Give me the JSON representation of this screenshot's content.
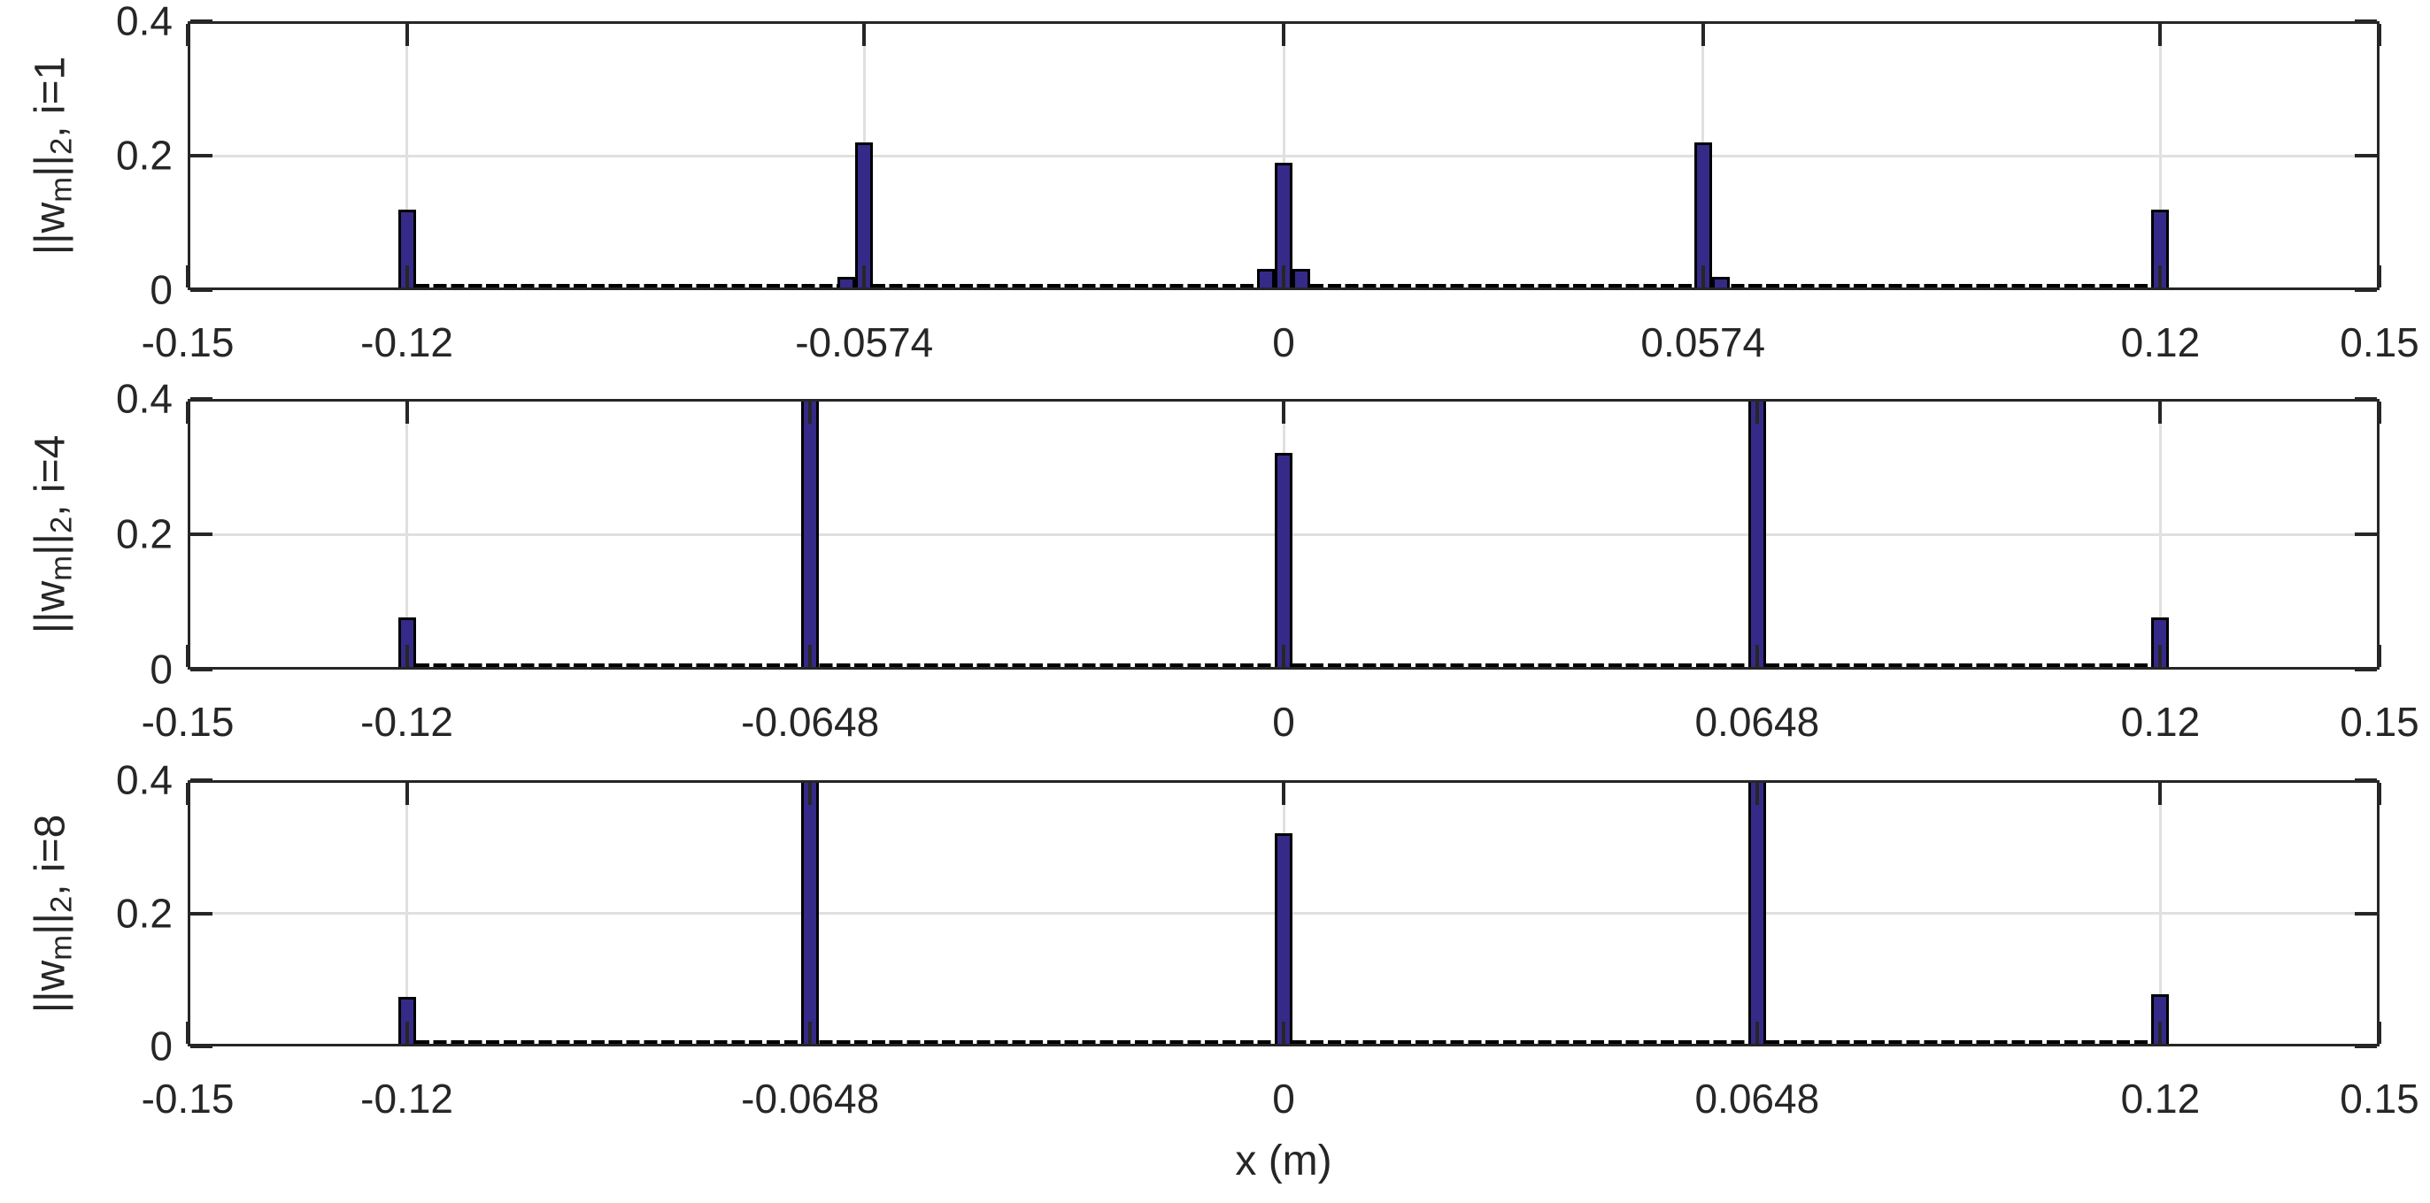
{
  "chart_data": {
    "type": "bar",
    "xlabel": "x (m)",
    "xlim": [
      -0.15,
      0.15
    ],
    "ylim": [
      0,
      0.4
    ],
    "grid": true,
    "ytick_values": [
      0,
      0.2,
      0.4
    ],
    "ytick_labels": [
      "0",
      "0.2",
      "0.4"
    ],
    "colors": {
      "bar_fill": "#352a87",
      "bar_edge": "#000000",
      "grid_line": "#e0e0e0",
      "axis_line": "#262626",
      "text": "#262626",
      "background": "#ffffff"
    },
    "subplots": [
      {
        "ylabel_text": "||w_m||_2, i=1",
        "ylabel_parts": {
          "p1": "||w",
          "s1": "m",
          "p2": "||",
          "s2": "2",
          "p3": ", i=1"
        },
        "xtick_values": [
          -0.15,
          -0.12,
          -0.0574,
          0,
          0.0574,
          0.12,
          0.15
        ],
        "xtick_labels": [
          "-0.15",
          "-0.12",
          "-0.0574",
          "0",
          "0.0574",
          "0.12",
          "0.15"
        ],
        "bars": [
          {
            "x": -0.12,
            "value": 0.12
          },
          {
            "x": -0.0598,
            "value": 0.02
          },
          {
            "x": -0.0574,
            "value": 0.22
          },
          {
            "x": -0.0024,
            "value": 0.032
          },
          {
            "x": 0,
            "value": 0.19
          },
          {
            "x": 0.0024,
            "value": 0.032
          },
          {
            "x": 0.0574,
            "value": 0.22
          },
          {
            "x": 0.0598,
            "value": 0.02
          },
          {
            "x": 0.12,
            "value": 0.12
          }
        ],
        "zero_bar_range": [
          -0.12,
          0.12
        ],
        "zero_bar_spacing": 0.0024
      },
      {
        "ylabel_text": "||w_m||_2, i=4",
        "ylabel_parts": {
          "p1": "||w",
          "s1": "m",
          "p2": "||",
          "s2": "2",
          "p3": ", i=4"
        },
        "xtick_values": [
          -0.15,
          -0.12,
          -0.0648,
          0,
          0.0648,
          0.12,
          0.15
        ],
        "xtick_labels": [
          "-0.15",
          "-0.12",
          "-0.0648",
          "0",
          "0.0648",
          "0.12",
          "0.15"
        ],
        "bars": [
          {
            "x": -0.12,
            "value": 0.077
          },
          {
            "x": -0.0648,
            "value": 0.4,
            "clipped": true
          },
          {
            "x": 0,
            "value": 0.32
          },
          {
            "x": 0.0648,
            "value": 0.4,
            "clipped": true
          },
          {
            "x": 0.12,
            "value": 0.077
          }
        ],
        "zero_bar_range": [
          -0.12,
          0.12
        ],
        "zero_bar_spacing": 0.0024
      },
      {
        "ylabel_text": "||w_m||_2, i=8",
        "ylabel_parts": {
          "p1": "||w",
          "s1": "m",
          "p2": "||",
          "s2": "2",
          "p3": ", i=8"
        },
        "xtick_values": [
          -0.15,
          -0.12,
          -0.0648,
          0,
          0.0648,
          0.12,
          0.15
        ],
        "xtick_labels": [
          "-0.15",
          "-0.12",
          "-0.0648",
          "0",
          "0.0648",
          "0.12",
          "0.15"
        ],
        "bars": [
          {
            "x": -0.12,
            "value": 0.075
          },
          {
            "x": -0.0648,
            "value": 0.4,
            "clipped": true
          },
          {
            "x": 0,
            "value": 0.32
          },
          {
            "x": 0.0648,
            "value": 0.4,
            "clipped": true
          },
          {
            "x": 0.12,
            "value": 0.078
          }
        ],
        "zero_bar_range": [
          -0.12,
          0.12
        ],
        "zero_bar_spacing": 0.0024
      }
    ]
  }
}
